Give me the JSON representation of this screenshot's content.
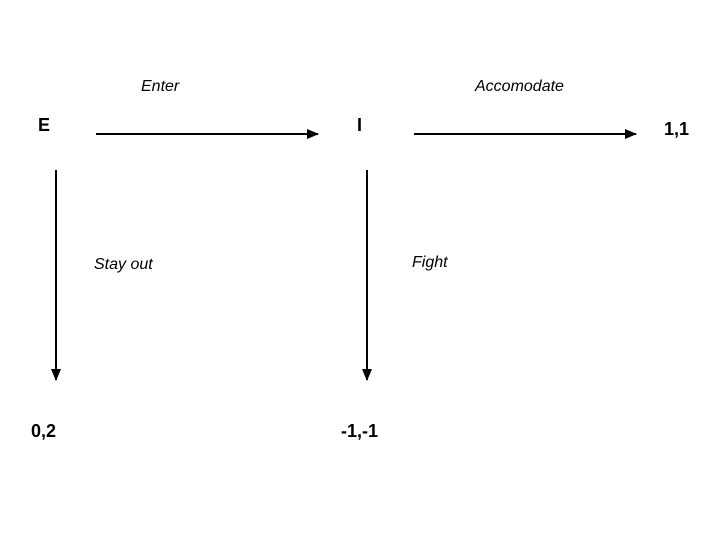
{
  "nodes": {
    "entrant": "E",
    "incumbent": "I"
  },
  "actions": {
    "enter": "Enter",
    "accomodate": "Accomodate",
    "stay_out": "Stay out",
    "fight": "Fight"
  },
  "payoffs": {
    "accomodate": "1,1",
    "stay_out": "0,2",
    "fight": "-1,-1"
  }
}
